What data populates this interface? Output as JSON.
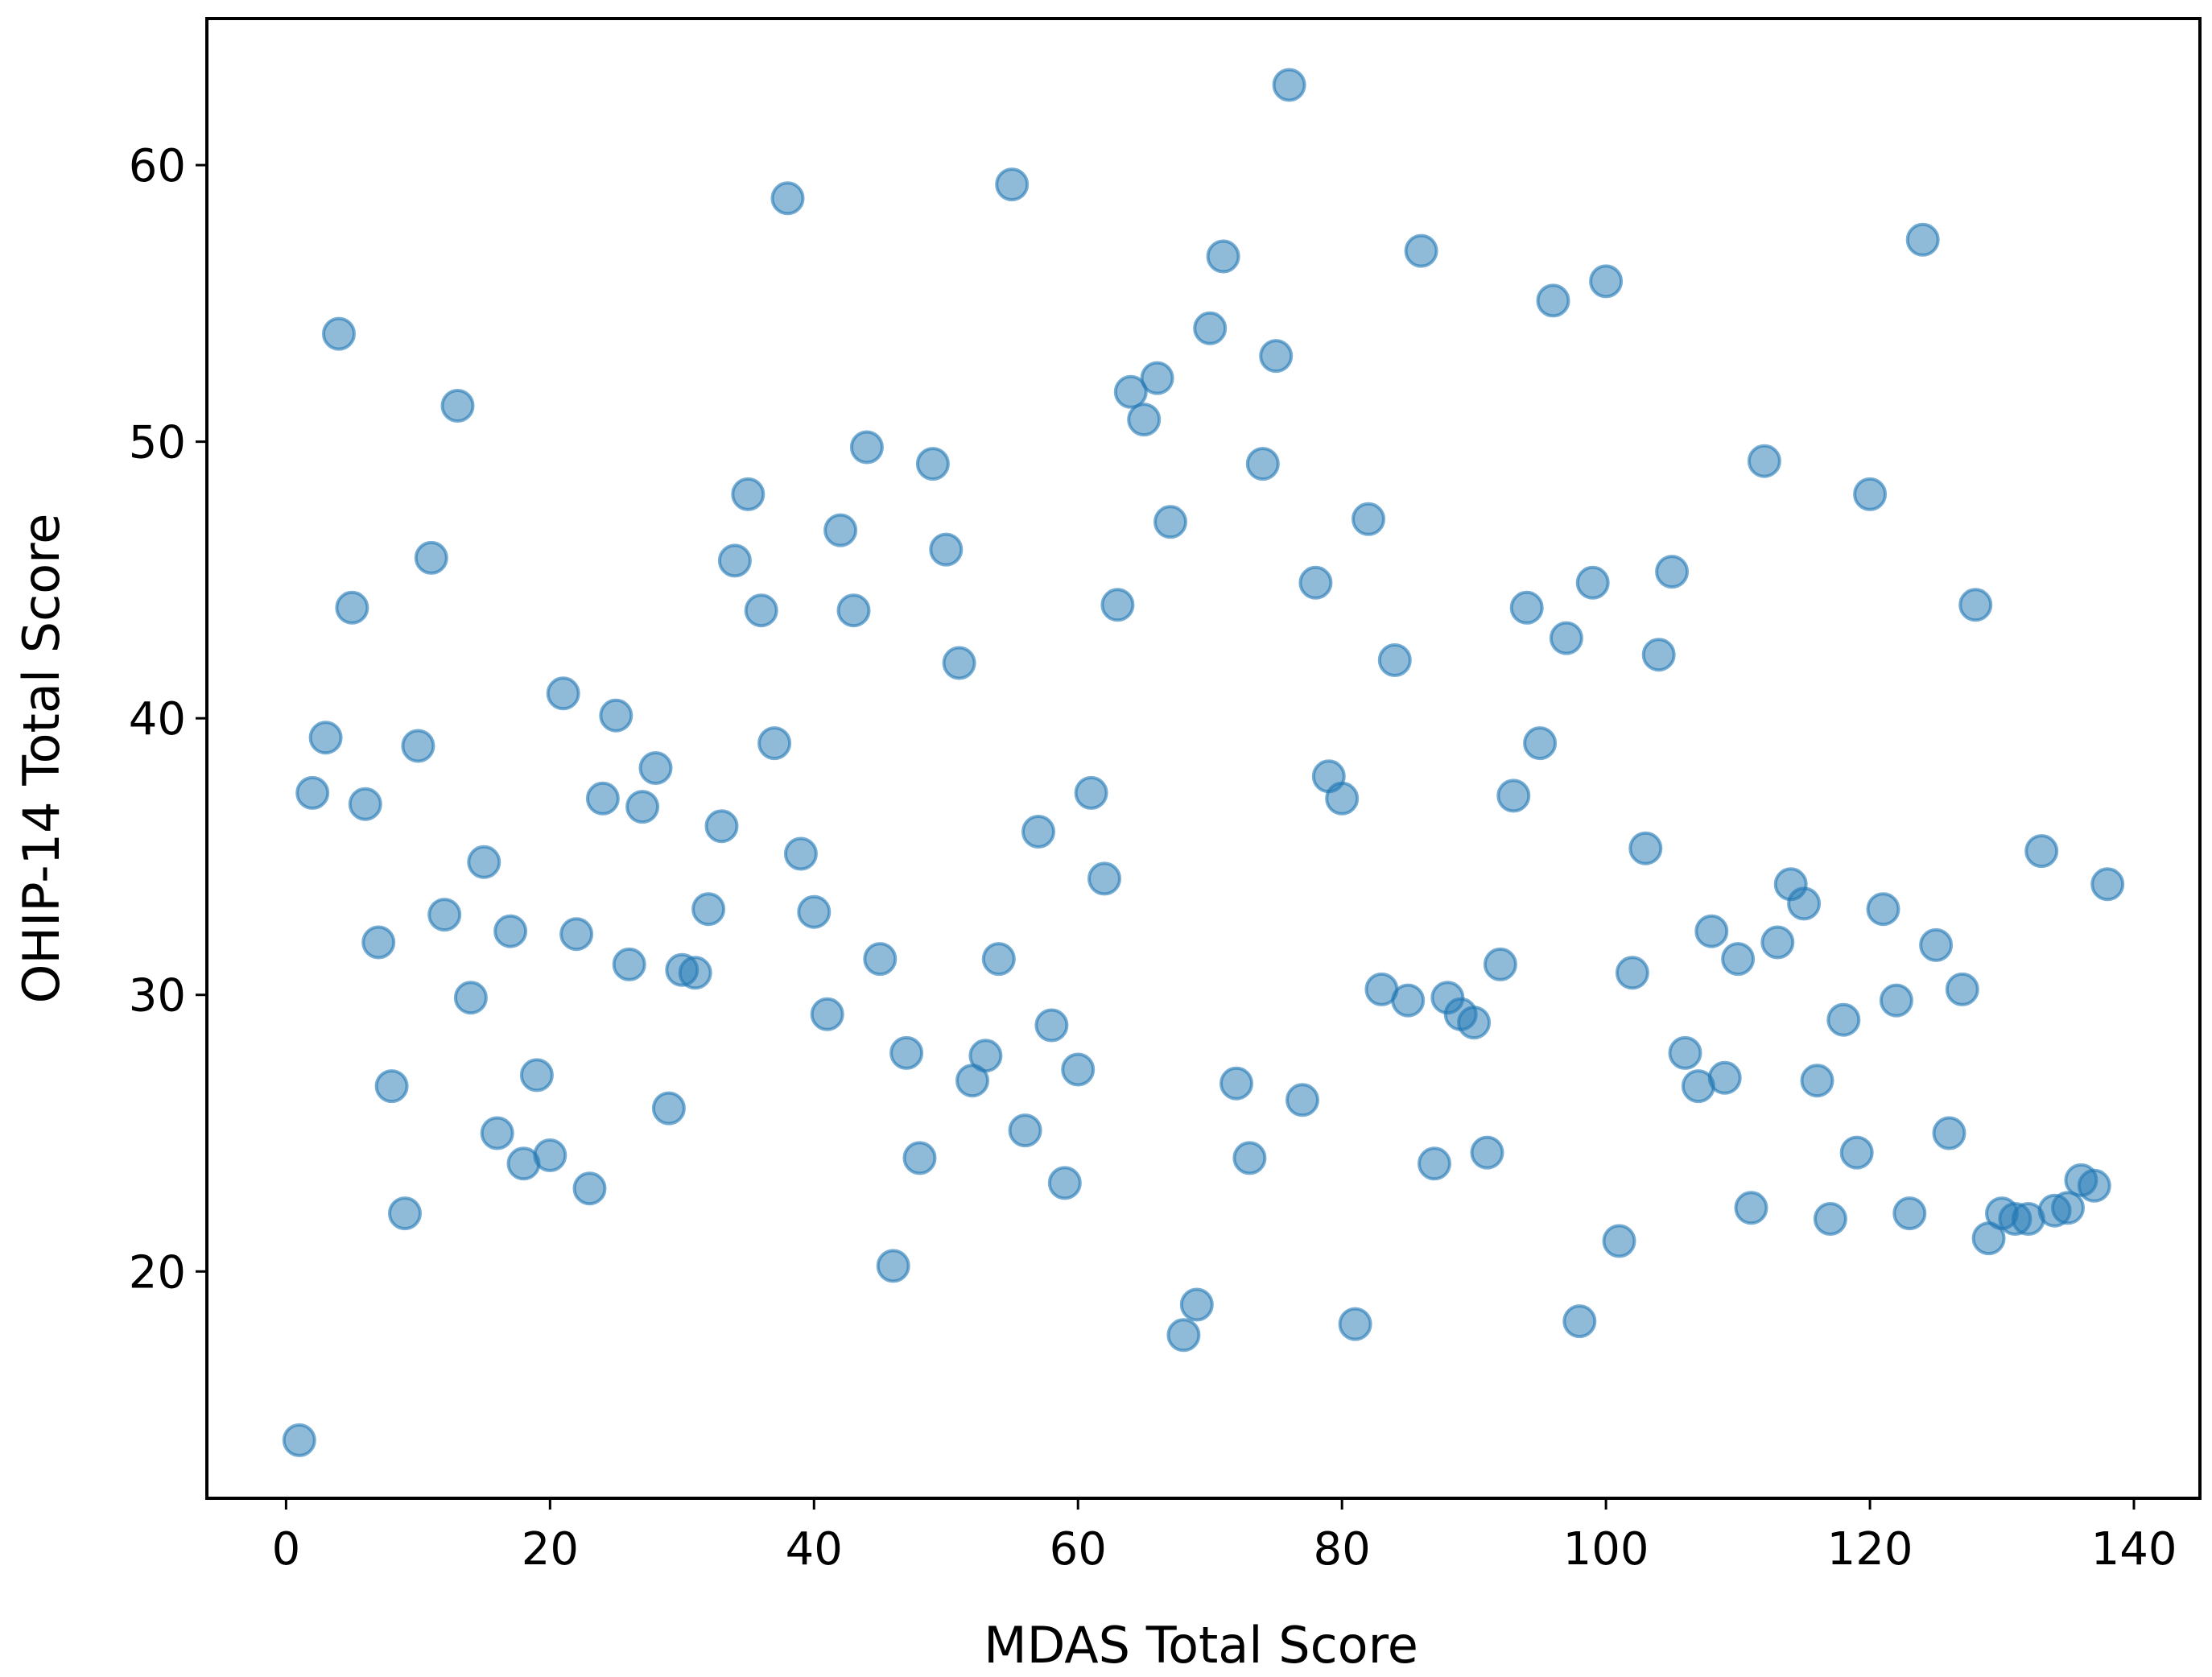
{
  "chart_data": {
    "type": "scatter",
    "xlabel": "MDAS Total Score",
    "ylabel": "OHIP-14 Total Score",
    "xlim": [
      -6,
      145
    ],
    "ylim": [
      11.8,
      65.3
    ],
    "xticks": [
      0,
      20,
      40,
      60,
      80,
      100,
      120,
      140
    ],
    "yticks": [
      20,
      30,
      40,
      50,
      60
    ],
    "grid": false,
    "marker_color": "#1f77b4",
    "marker_alpha": 0.5,
    "points": [
      [
        1,
        13.9
      ],
      [
        2,
        37.3
      ],
      [
        3,
        39.3
      ],
      [
        4,
        53.9
      ],
      [
        5,
        44.0
      ],
      [
        6,
        36.9
      ],
      [
        7,
        31.9
      ],
      [
        8,
        26.7
      ],
      [
        9,
        22.1
      ],
      [
        10,
        39.0
      ],
      [
        11,
        45.8
      ],
      [
        12,
        32.9
      ],
      [
        13,
        51.3
      ],
      [
        14,
        29.9
      ],
      [
        15,
        34.8
      ],
      [
        16,
        25.0
      ],
      [
        17,
        32.3
      ],
      [
        18,
        23.9
      ],
      [
        19,
        27.1
      ],
      [
        20,
        24.2
      ],
      [
        21,
        40.9
      ],
      [
        22,
        32.2
      ],
      [
        23,
        23.0
      ],
      [
        24,
        37.1
      ],
      [
        25,
        40.1
      ],
      [
        26,
        31.1
      ],
      [
        27,
        36.8
      ],
      [
        28,
        38.2
      ],
      [
        29,
        25.9
      ],
      [
        30,
        30.9
      ],
      [
        31,
        30.8
      ],
      [
        32,
        33.1
      ],
      [
        33,
        36.1
      ],
      [
        34,
        45.7
      ],
      [
        35,
        48.1
      ],
      [
        36,
        43.9
      ],
      [
        37,
        39.1
      ],
      [
        38,
        58.8
      ],
      [
        39,
        35.1
      ],
      [
        40,
        33.0
      ],
      [
        41,
        29.3
      ],
      [
        42,
        46.8
      ],
      [
        43,
        43.9
      ],
      [
        44,
        49.8
      ],
      [
        45,
        31.3
      ],
      [
        46,
        20.2
      ],
      [
        47,
        27.9
      ],
      [
        48,
        24.1
      ],
      [
        49,
        49.2
      ],
      [
        50,
        46.1
      ],
      [
        51,
        42.0
      ],
      [
        52,
        26.9
      ],
      [
        53,
        27.8
      ],
      [
        54,
        31.3
      ],
      [
        55,
        59.3
      ],
      [
        56,
        25.1
      ],
      [
        57,
        35.9
      ],
      [
        58,
        28.9
      ],
      [
        59,
        23.2
      ],
      [
        60,
        27.3
      ],
      [
        61,
        37.3
      ],
      [
        62,
        34.2
      ],
      [
        63,
        44.1
      ],
      [
        64,
        51.8
      ],
      [
        65,
        50.8
      ],
      [
        66,
        52.3
      ],
      [
        67,
        47.1
      ],
      [
        68,
        17.7
      ],
      [
        69,
        18.8
      ],
      [
        70,
        54.1
      ],
      [
        71,
        56.7
      ],
      [
        72,
        26.8
      ],
      [
        73,
        24.1
      ],
      [
        74,
        49.2
      ],
      [
        75,
        53.1
      ],
      [
        76,
        62.9
      ],
      [
        77,
        26.2
      ],
      [
        78,
        44.9
      ],
      [
        79,
        37.9
      ],
      [
        80,
        37.1
      ],
      [
        81,
        18.1
      ],
      [
        82,
        47.2
      ],
      [
        83,
        30.2
      ],
      [
        84,
        42.1
      ],
      [
        85,
        29.8
      ],
      [
        86,
        56.9
      ],
      [
        87,
        23.9
      ],
      [
        88,
        29.9
      ],
      [
        89,
        29.3
      ],
      [
        90,
        29.0
      ],
      [
        91,
        24.3
      ],
      [
        92,
        31.1
      ],
      [
        93,
        37.2
      ],
      [
        94,
        44.0
      ],
      [
        95,
        39.1
      ],
      [
        96,
        55.1
      ],
      [
        97,
        42.9
      ],
      [
        98,
        18.2
      ],
      [
        99,
        44.9
      ],
      [
        100,
        55.8
      ],
      [
        101,
        21.1
      ],
      [
        102,
        30.8
      ],
      [
        103,
        35.3
      ],
      [
        104,
        42.3
      ],
      [
        105,
        45.3
      ],
      [
        106,
        27.9
      ],
      [
        107,
        26.7
      ],
      [
        108,
        32.3
      ],
      [
        109,
        27.0
      ],
      [
        110,
        31.3
      ],
      [
        111,
        22.3
      ],
      [
        112,
        49.3
      ],
      [
        113,
        31.9
      ],
      [
        114,
        34.0
      ],
      [
        115,
        33.3
      ],
      [
        116,
        26.9
      ],
      [
        117,
        21.9
      ],
      [
        118,
        29.1
      ],
      [
        119,
        24.3
      ],
      [
        120,
        48.1
      ],
      [
        121,
        33.1
      ],
      [
        122,
        29.8
      ],
      [
        123,
        22.1
      ],
      [
        124,
        57.3
      ],
      [
        125,
        31.8
      ],
      [
        126,
        25.0
      ],
      [
        127,
        30.2
      ],
      [
        128,
        44.1
      ],
      [
        129,
        21.2
      ],
      [
        130,
        22.1
      ],
      [
        131,
        21.9
      ],
      [
        132,
        21.9
      ],
      [
        133,
        35.2
      ],
      [
        134,
        22.2
      ],
      [
        135,
        22.3
      ],
      [
        136,
        23.3
      ],
      [
        137,
        23.1
      ],
      [
        138,
        34.0
      ]
    ]
  }
}
